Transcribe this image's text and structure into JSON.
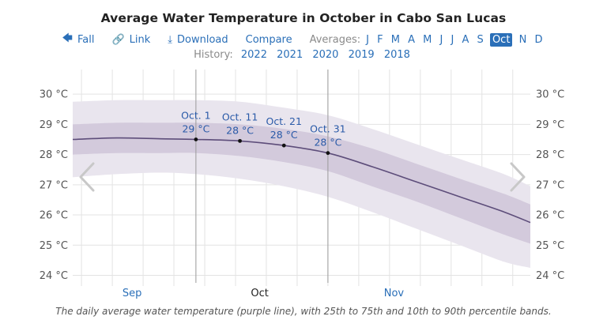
{
  "title": "Average Water Temperature in October in Cabo San Lucas",
  "toolbar": {
    "fall_label": "Fall",
    "link_label": "Link",
    "download_label": "Download",
    "compare_label": "Compare",
    "averages_label": "Averages:",
    "months": [
      "J",
      "F",
      "M",
      "A",
      "M",
      "J",
      "J",
      "A",
      "S",
      "Oct",
      "N",
      "D"
    ],
    "selected_month_index": 9
  },
  "history": {
    "label": "History:",
    "years": [
      "2022",
      "2021",
      "2020",
      "2019",
      "2018"
    ]
  },
  "caption": "The daily average water temperature (purple line), with 25th to 75th and 10th to 90th percentile bands.",
  "icons": {
    "fall": "arrow-left-icon",
    "link": "link-icon",
    "download": "download-icon",
    "prev": "chevron-left-icon",
    "next": "chevron-right-icon"
  },
  "colors": {
    "line": "#5d4d7a",
    "band_inner": "#d3cadc",
    "band_outer": "#e9e5ee",
    "accent": "#2a6fb8",
    "marker_text": "#2a5aa8"
  },
  "chart_data": {
    "type": "area",
    "x_unit": "day of year",
    "x": [
      246,
      256,
      266,
      274,
      284,
      294,
      304,
      314,
      324,
      334,
      344,
      350
    ],
    "series": [
      {
        "values": [
          28.5,
          28.55,
          28.52,
          28.5,
          28.45,
          28.3,
          28.05,
          27.6,
          27.1,
          26.6,
          26.1,
          25.75
        ]
      },
      {
        "band": "25th-75th percentile",
        "low": [
          28.0,
          28.05,
          28.05,
          28.05,
          27.95,
          27.75,
          27.45,
          26.95,
          26.45,
          25.9,
          25.35,
          25.05
        ],
        "high": [
          29.0,
          29.05,
          29.05,
          29.05,
          29.0,
          28.85,
          28.6,
          28.2,
          27.7,
          27.2,
          26.7,
          26.35
        ]
      },
      {
        "band": "10th-90th percentile",
        "low": [
          27.25,
          27.35,
          27.4,
          27.35,
          27.2,
          26.95,
          26.6,
          26.1,
          25.55,
          25.0,
          24.45,
          24.25
        ],
        "high": [
          29.75,
          29.8,
          29.8,
          29.8,
          29.75,
          29.55,
          29.3,
          28.85,
          28.35,
          27.85,
          27.35,
          26.95
        ]
      }
    ],
    "ylim": [
      23.7,
      30.5
    ],
    "y_ticks": [
      "24 °C",
      "25 °C",
      "26 °C",
      "27 °C",
      "28 °C",
      "29 °C",
      "30 °C"
    ],
    "x_tick_labels": [
      "Sep",
      "Oct",
      "Nov"
    ],
    "annotations": [
      {
        "date": "Oct. 1",
        "value": "29 °C"
      },
      {
        "date": "Oct. 11",
        "value": "28 °C"
      },
      {
        "date": "Oct. 21",
        "value": "28 °C"
      },
      {
        "date": "Oct. 31",
        "value": "28 °C"
      }
    ],
    "grid": true,
    "legend": "none"
  }
}
